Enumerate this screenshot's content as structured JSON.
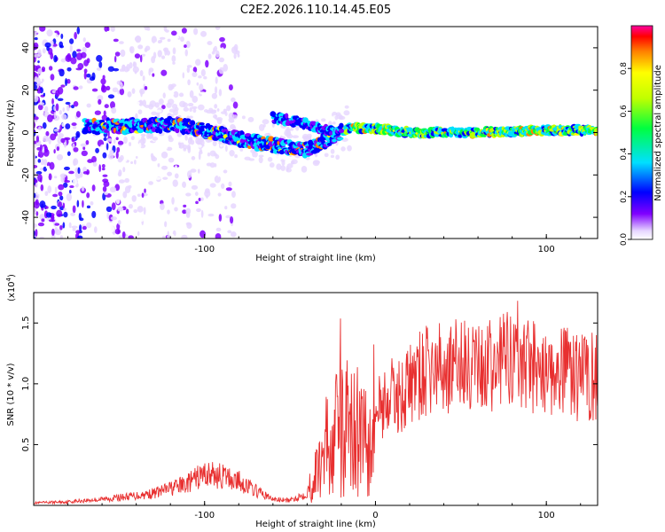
{
  "title": "C2E2.2026.110.14.45.E05",
  "chart_data": [
    {
      "type": "heatmap",
      "title": "C2E2.2026.110.14.45.E05",
      "xlabel": "Height of straight line (km)",
      "ylabel": "Frequency (Hz)",
      "xlim": [
        -200,
        130
      ],
      "ylim": [
        -50,
        50
      ],
      "xticks": [
        {
          "value": -100,
          "label": "-100"
        },
        {
          "value": 100,
          "label": "100"
        }
      ],
      "yticks": [
        {
          "value": 40,
          "label": "40"
        },
        {
          "value": 20,
          "label": "20"
        },
        {
          "value": 0,
          "label": "0"
        },
        {
          "value": -20,
          "label": "-20"
        },
        {
          "value": -40,
          "label": "-40"
        }
      ],
      "colorbar": {
        "label": "Normalized spectral amplitude",
        "range": [
          0,
          1
        ],
        "ticks": [
          {
            "value": 0.0,
            "label": "0.0"
          },
          {
            "value": 0.2,
            "label": "0.2"
          },
          {
            "value": 0.4,
            "label": "0.4"
          },
          {
            "value": 0.6,
            "label": "0.6"
          },
          {
            "value": 0.8,
            "label": "0.8"
          }
        ]
      },
      "ridge": [
        {
          "x": -160,
          "y": 3
        },
        {
          "x": -140,
          "y": 3
        },
        {
          "x": -120,
          "y": 4
        },
        {
          "x": -100,
          "y": 1
        },
        {
          "x": -80,
          "y": -3
        },
        {
          "x": -60,
          "y": -6
        },
        {
          "x": -40,
          "y": -8
        },
        {
          "x": -25,
          "y": -2
        },
        {
          "x": -15,
          "y": 2
        },
        {
          "x": 0,
          "y": 2
        },
        {
          "x": 20,
          "y": 0
        },
        {
          "x": 60,
          "y": 0
        },
        {
          "x": 100,
          "y": 1
        },
        {
          "x": 130,
          "y": 1
        }
      ],
      "secondary_ridge": [
        {
          "x": -60,
          "y": 7
        },
        {
          "x": -45,
          "y": 5
        },
        {
          "x": -30,
          "y": 1
        },
        {
          "x": -20,
          "y": 2
        }
      ]
    },
    {
      "type": "line",
      "xlabel": "Height of straight line (km)",
      "ylabel": "SNR (10 * v/v)",
      "multiplier": "(x10",
      "multiplier_exp": "4",
      "multiplier_close": ")",
      "xlim": [
        -200,
        130
      ],
      "ylim": [
        0,
        1.75
      ],
      "xticks": [
        {
          "value": -100,
          "label": "-100"
        },
        {
          "value": 0,
          "label": "0"
        },
        {
          "value": 100,
          "label": "100"
        }
      ],
      "yticks": [
        {
          "value": 0.5,
          "label": "0.5"
        },
        {
          "value": 1.0,
          "label": "1.0"
        },
        {
          "value": 1.5,
          "label": "1.5"
        }
      ],
      "series": [
        {
          "name": "SNR",
          "color": "#e83030",
          "x": [
            -200,
            -180,
            -160,
            -140,
            -130,
            -120,
            -110,
            -100,
            -90,
            -80,
            -70,
            -60,
            -50,
            -40,
            -35,
            -30,
            -25,
            -20,
            -15,
            -10,
            -5,
            0,
            5,
            10,
            15,
            20,
            30,
            40,
            50,
            60,
            70,
            80,
            90,
            100,
            110,
            120,
            130
          ],
          "y": [
            0.02,
            0.03,
            0.05,
            0.08,
            0.1,
            0.14,
            0.18,
            0.26,
            0.24,
            0.2,
            0.12,
            0.05,
            0.04,
            0.1,
            0.25,
            0.45,
            0.6,
            0.6,
            0.65,
            0.6,
            0.7,
            0.8,
            0.85,
            0.9,
            0.9,
            1.0,
            1.1,
            1.12,
            1.15,
            1.12,
            1.15,
            1.2,
            1.15,
            1.12,
            1.1,
            1.05,
            1.08
          ]
        }
      ]
    }
  ]
}
